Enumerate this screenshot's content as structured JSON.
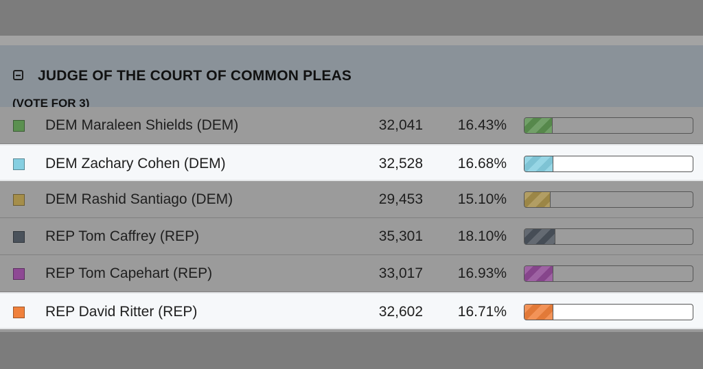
{
  "contest": {
    "title": "JUDGE OF THE COURT OF COMMON PLEAS",
    "vote_for": "(VOTE FOR 3)"
  },
  "candidates": [
    {
      "name": "DEM Maraleen Shields (DEM)",
      "votes": "32,041",
      "percent": "16.43%",
      "percent_value": 16.43,
      "color": "#5b9050",
      "highlight": false
    },
    {
      "name": "DEM Zachary Cohen (DEM)",
      "votes": "32,528",
      "percent": "16.68%",
      "percent_value": 16.68,
      "color": "#86cfe1",
      "highlight": true
    },
    {
      "name": "DEM Rashid Santiago (DEM)",
      "votes": "29,453",
      "percent": "15.10%",
      "percent_value": 15.1,
      "color": "#a58e4a",
      "highlight": false
    },
    {
      "name": "REP Tom Caffrey (REP)",
      "votes": "35,301",
      "percent": "18.10%",
      "percent_value": 18.1,
      "color": "#4a525b",
      "highlight": false
    },
    {
      "name": "REP Tom Capehart (REP)",
      "votes": "33,017",
      "percent": "16.93%",
      "percent_value": 16.93,
      "color": "#8e4994",
      "highlight": false
    },
    {
      "name": "REP David Ritter (REP)",
      "votes": "32,602",
      "percent": "16.71%",
      "percent_value": 16.71,
      "color": "#f0813c",
      "highlight": true
    }
  ],
  "icons": {
    "collapse": "minus-square-icon"
  }
}
